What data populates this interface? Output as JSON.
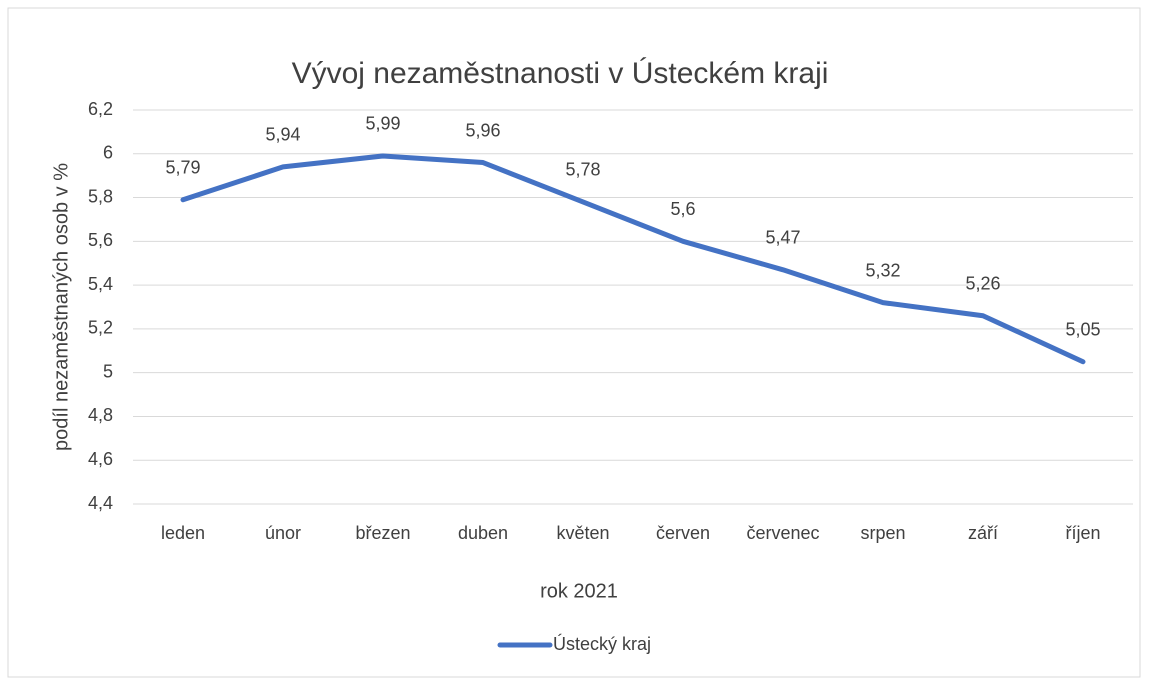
{
  "chart_data": {
    "type": "line",
    "title": "Vývoj nezaměstnanosti v Ústeckém kraji",
    "x_label": "rok 2021",
    "y_label": "podíl nezaměstnaných osob v  %",
    "categories": [
      "leden",
      "únor",
      "březen",
      "duben",
      "květen",
      "červen",
      "červenec",
      "srpen",
      "září",
      "říjen"
    ],
    "series": [
      {
        "name": "Ústecký kraj",
        "color": "#4472c4",
        "values": [
          5.79,
          5.94,
          5.99,
          5.96,
          5.78,
          5.6,
          5.47,
          5.32,
          5.26,
          5.05
        ],
        "value_labels": [
          "5,79",
          "5,94",
          "5,99",
          "5,96",
          "5,78",
          "5,6",
          "5,47",
          "5,32",
          "5,26",
          "5,05"
        ]
      }
    ],
    "ylim": [
      4.4,
      6.2
    ],
    "yticks": [
      {
        "value": 4.4,
        "label": "4,4"
      },
      {
        "value": 4.6,
        "label": "4,6"
      },
      {
        "value": 4.8,
        "label": "4,8"
      },
      5,
      {
        "value": 5.2,
        "label": "5,2"
      },
      {
        "value": 5.4,
        "label": "5,4"
      },
      {
        "value": 5.6,
        "label": "5,6"
      },
      {
        "value": 5.8,
        "label": "5,8"
      },
      6,
      {
        "value": 6.2,
        "label": "6,2"
      }
    ],
    "grid": true,
    "legend": "bottom"
  }
}
